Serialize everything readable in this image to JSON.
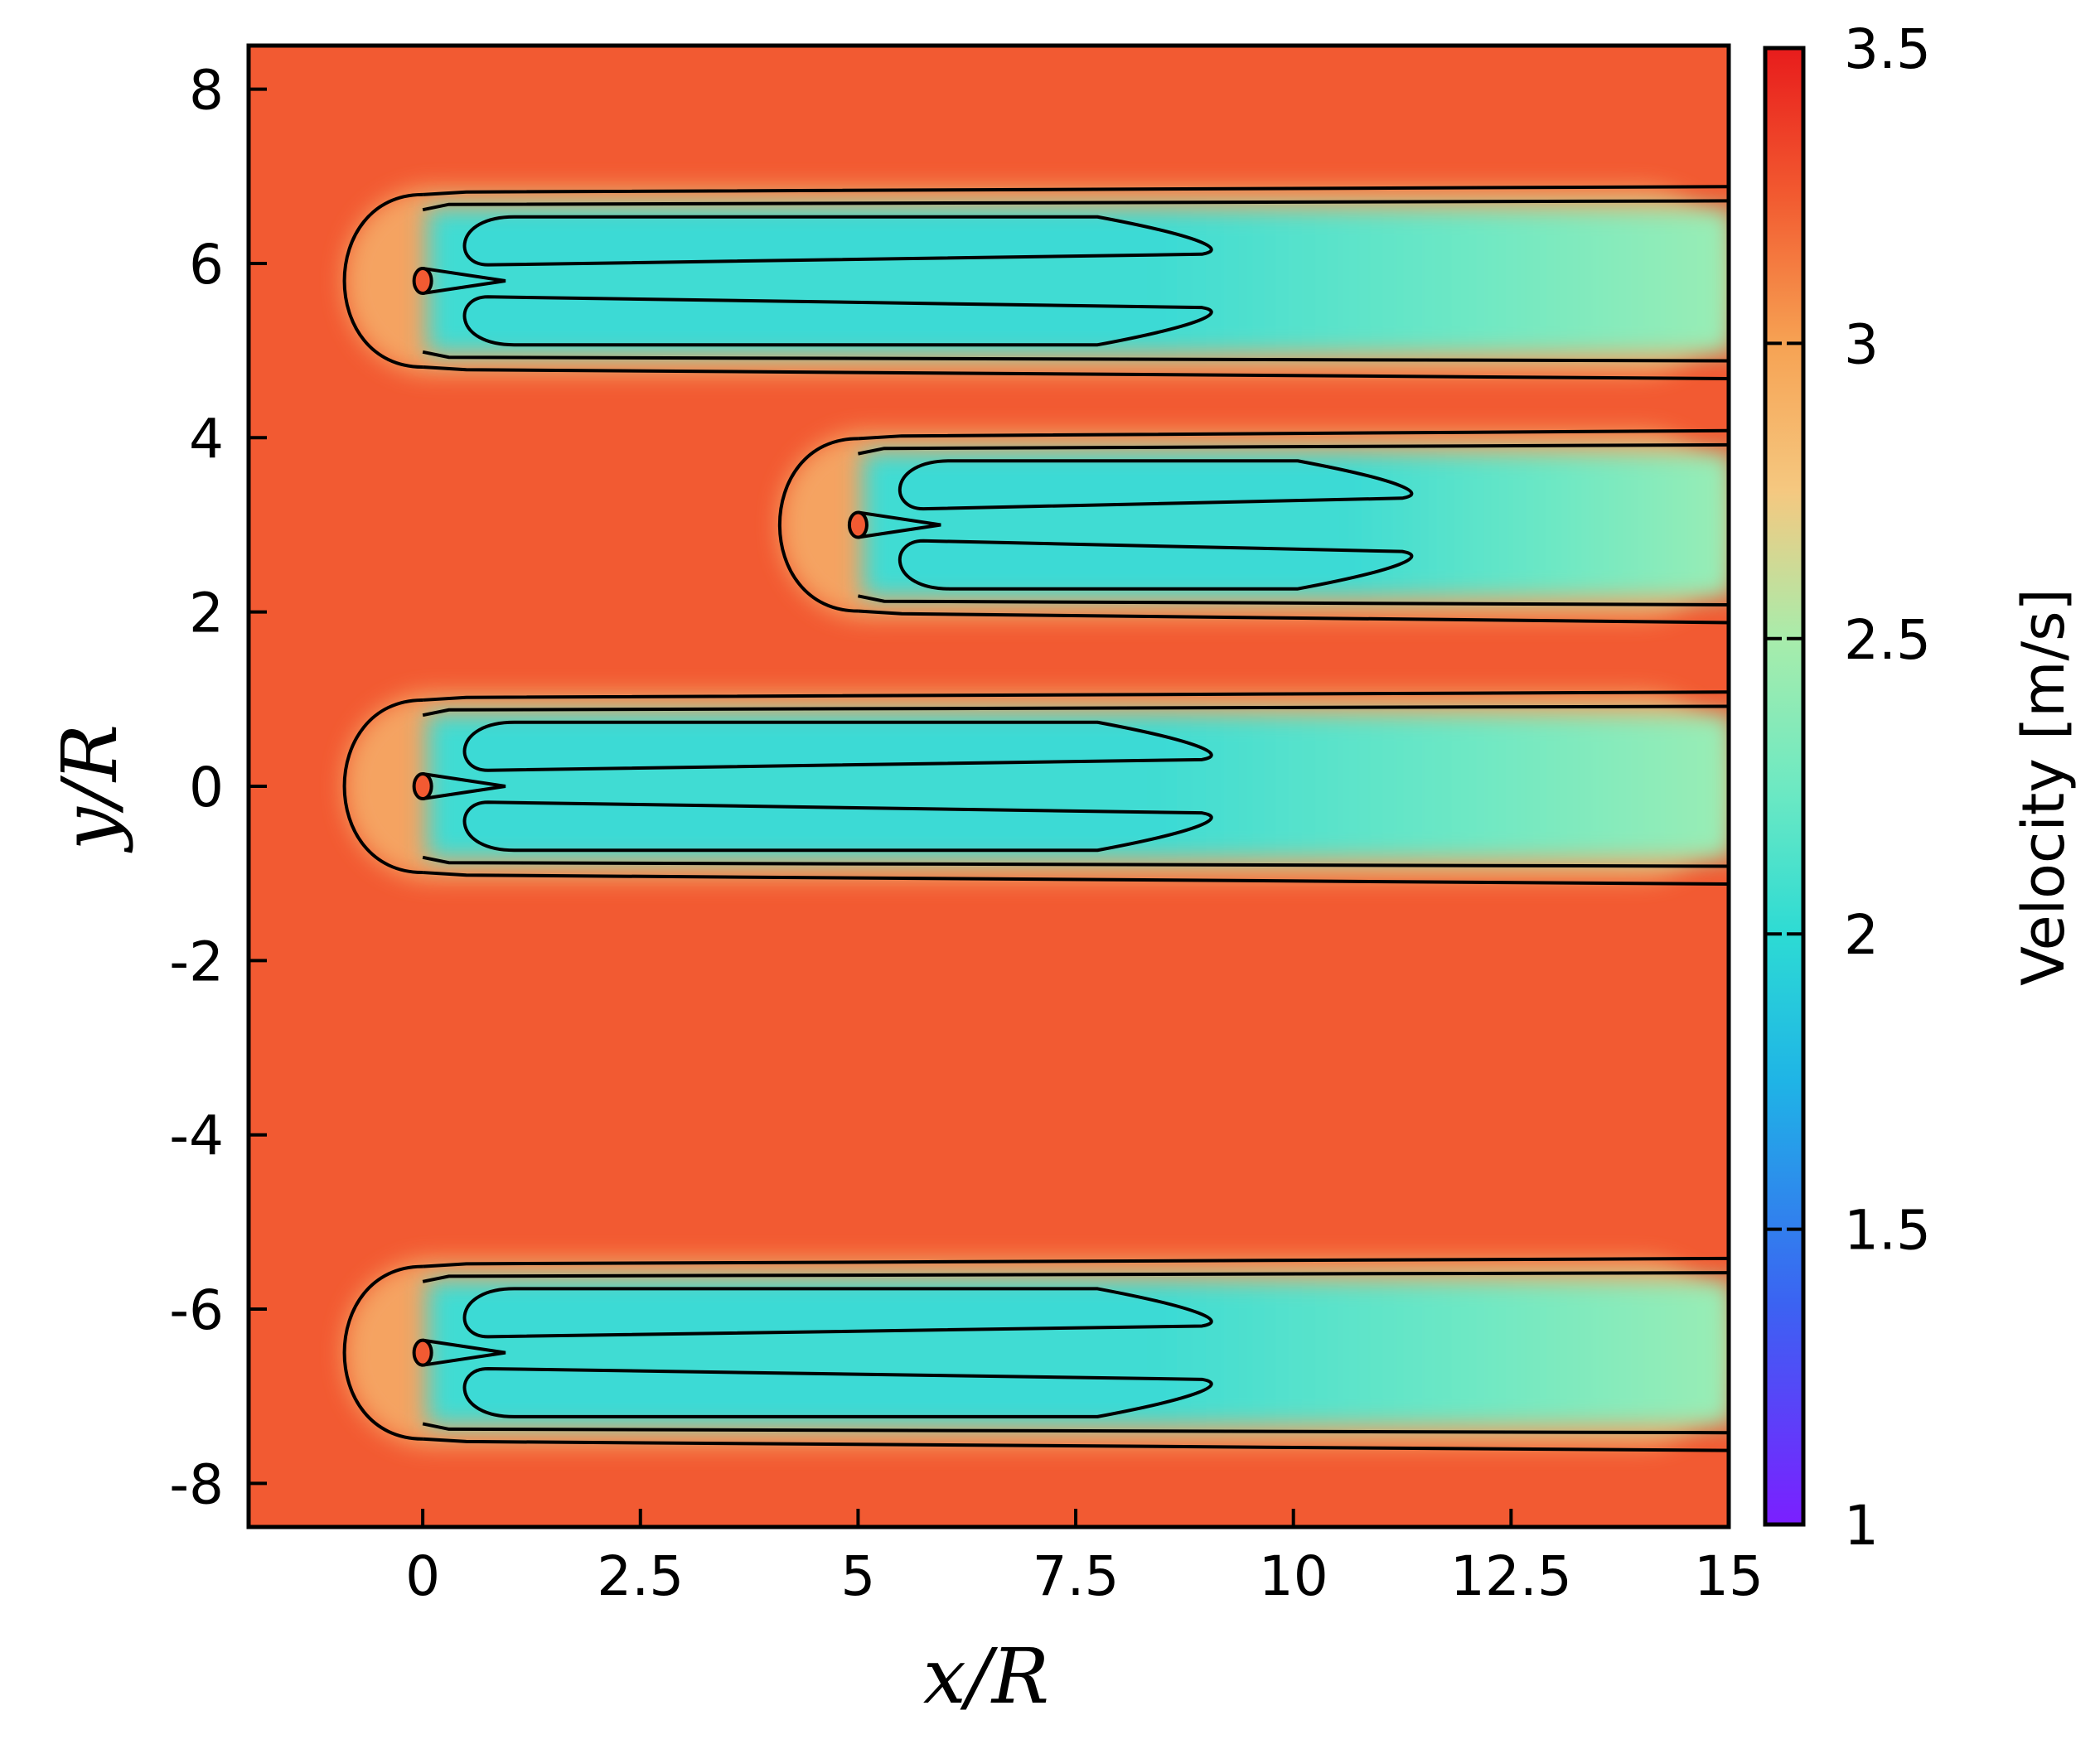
{
  "chart_data": {
    "type": "heatmap",
    "title": "",
    "xlabel": "x/R",
    "ylabel": "y/R",
    "xlim": [
      -2,
      15
    ],
    "ylim": [
      -8.5,
      8.5
    ],
    "x_ticks": [
      0,
      2.5,
      5,
      7.5,
      10,
      12.5,
      15
    ],
    "x_tick_labels": [
      "0",
      "2.5",
      "5",
      "7.5",
      "10",
      "12.5",
      "15"
    ],
    "y_ticks": [
      8,
      6,
      4,
      2,
      0,
      -2,
      -4,
      -6,
      -8
    ],
    "y_tick_labels": [
      "8",
      "6",
      "4",
      "2",
      "0",
      "-2",
      "-4",
      "-6",
      "-8"
    ],
    "colorbar": {
      "label": "Velocity [m/s]",
      "range": [
        1,
        3.5
      ],
      "ticks": [
        3.5,
        3,
        2.5,
        2,
        1.5,
        1
      ],
      "tick_labels": [
        "3.5",
        "3",
        "2.5",
        "2",
        "1.5",
        "1"
      ],
      "colormap": "rainbow",
      "colors": [
        "#7b1fff",
        "#2f7fef",
        "#2dd5d9",
        "#8ee9b0",
        "#f6c27c",
        "#f6a253",
        "#f2542f",
        "#e81c1c"
      ]
    },
    "freestream_velocity": 3.2,
    "contour_levels": [
      2.0,
      2.5,
      3.0
    ],
    "turbines": [
      {
        "x": 0,
        "y": 5.8,
        "wake_end_x": 15
      },
      {
        "x": 5,
        "y": 3.0,
        "wake_end_x": 15
      },
      {
        "x": 0,
        "y": 0.0,
        "wake_end_x": 15
      },
      {
        "x": 0,
        "y": -6.5,
        "wake_end_x": 15
      }
    ],
    "grid": false,
    "legend": "colorbar-right"
  }
}
